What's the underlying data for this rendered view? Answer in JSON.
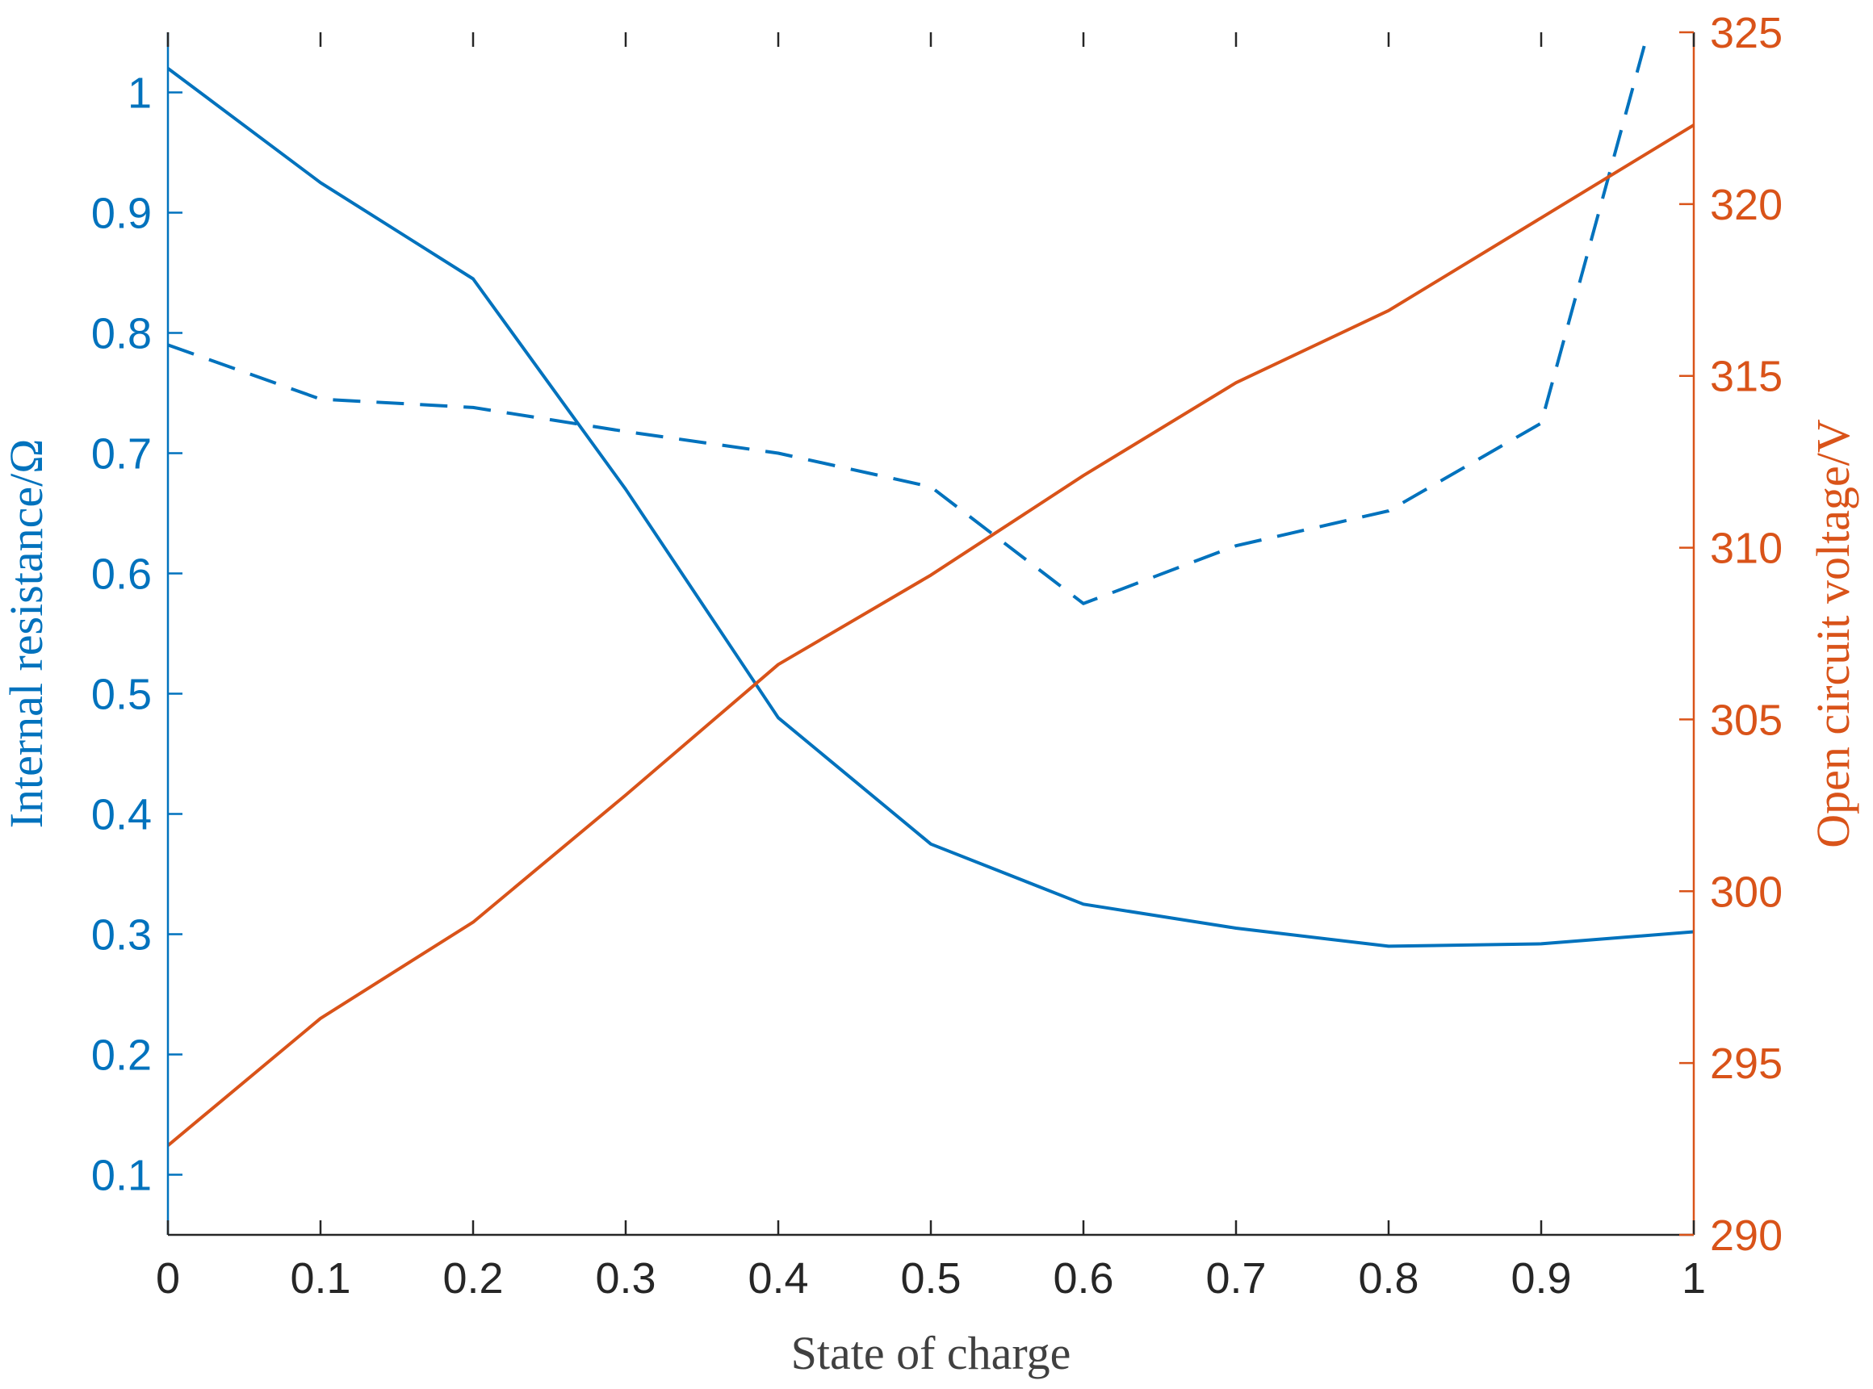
{
  "chart_data": {
    "type": "line",
    "xlabel": "State of charge",
    "ylabel_left": "Internal resistance/Ω",
    "ylabel_right": "Open circuit voltage/V",
    "xlim": [
      0,
      1
    ],
    "ylim_left": [
      0.05,
      1.05
    ],
    "ylim_right": [
      290,
      325
    ],
    "xticks": [
      "0",
      "0.1",
      "0.2",
      "0.3",
      "0.4",
      "0.5",
      "0.6",
      "0.7",
      "0.8",
      "0.9",
      "1"
    ],
    "yticks_left": [
      "0.1",
      "0.2",
      "0.3",
      "0.4",
      "0.5",
      "0.6",
      "0.7",
      "0.8",
      "0.9",
      "1"
    ],
    "yticks_right": [
      "290",
      "295",
      "300",
      "305",
      "310",
      "315",
      "320",
      "325"
    ],
    "grid": false,
    "x": [
      0,
      0.1,
      0.2,
      0.3,
      0.4,
      0.5,
      0.6,
      0.7,
      0.8,
      0.9,
      1.0
    ],
    "series": [
      {
        "axis": "left",
        "style": "solid",
        "color": "#0072BD",
        "values": [
          1.02,
          0.925,
          0.845,
          0.67,
          0.48,
          0.375,
          0.325,
          0.305,
          0.29,
          0.292,
          0.302
        ]
      },
      {
        "axis": "left",
        "style": "dashed",
        "color": "#0072BD",
        "x": [
          0,
          0.1,
          0.2,
          0.3,
          0.4,
          0.5,
          0.6,
          0.7,
          0.8,
          0.9,
          0.97
        ],
        "values": [
          0.79,
          0.745,
          0.738,
          0.718,
          0.7,
          0.672,
          0.575,
          0.623,
          0.652,
          0.725,
          1.05
        ]
      },
      {
        "axis": "right",
        "style": "solid",
        "color": "#D95319",
        "values": [
          292.6,
          296.3,
          299.1,
          302.8,
          306.6,
          309.2,
          312.1,
          314.8,
          316.9,
          319.6,
          322.3
        ]
      }
    ]
  }
}
